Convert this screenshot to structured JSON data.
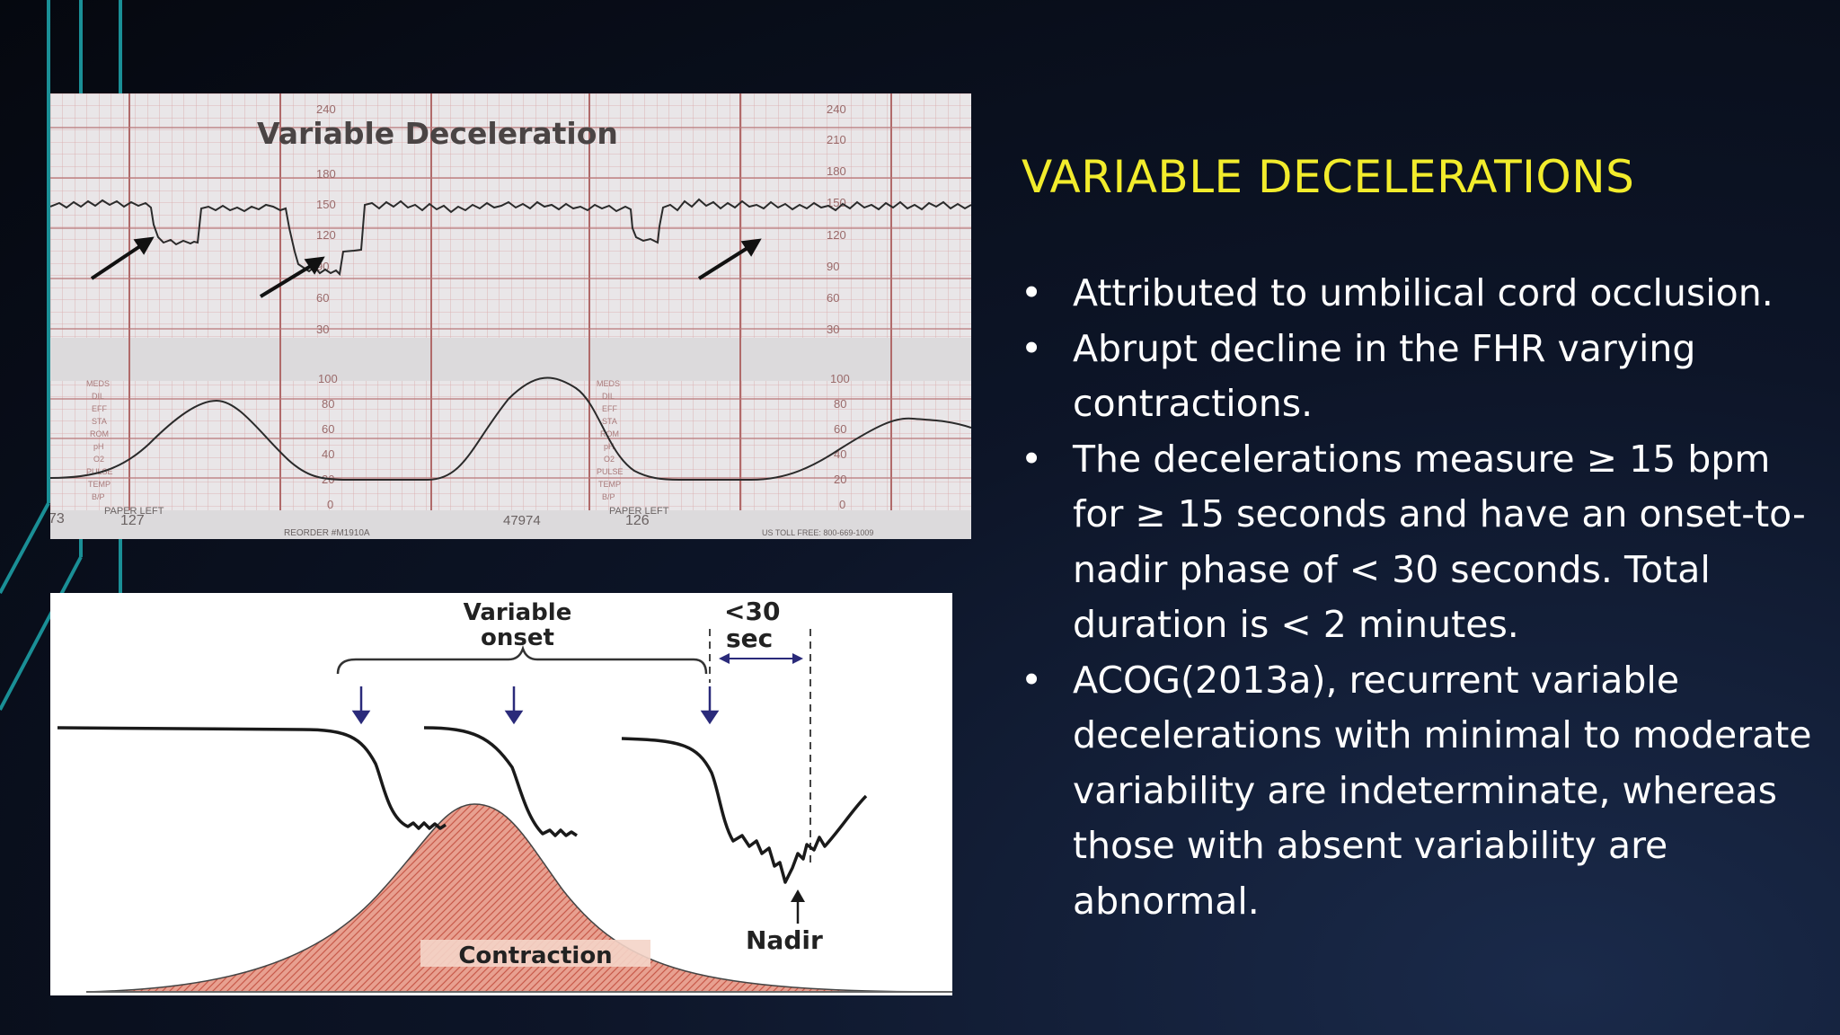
{
  "slide": {
    "title": "VARIABLE DECELERATIONS",
    "bullet_symbol": "•",
    "bullets": [
      "Attributed to umbilical cord occlusion.",
      "Abrupt decline in the FHR varying contractions.",
      "The decelerations measure ≥ 15 bpm for ≥ 15 seconds and have an onset-to-nadir phase of < 30 seconds. Total duration is < 2 minutes.",
      "ACOG(2013a), recurrent variable decelerations with minimal to moderate variability are indeterminate, whereas those with absent variability are abnormal."
    ]
  },
  "ctg_strip": {
    "title": "Variable Deceleration",
    "fhr_scale": [
      "240",
      "210",
      "180",
      "150",
      "120",
      "90",
      "60",
      "30"
    ],
    "uc_scale": [
      "100",
      "80",
      "60",
      "40",
      "20",
      "0"
    ],
    "side_labels": [
      "MEDS",
      "DIL",
      "EFF",
      "STA",
      "ROM",
      "pH",
      "O2",
      "PULSE",
      "TEMP",
      "B/P"
    ],
    "page_left_label": "PAPER LEFT",
    "page_left_values": [
      "127",
      "126"
    ],
    "page_number_edge": "73",
    "serial": "47974",
    "reorder": "REORDER #M1910A",
    "toll_free": "US TOLL FREE: 800-669-1009"
  },
  "schematic": {
    "label_variable_onset": "Variable onset",
    "label_lt30": "<30",
    "label_sec": "sec",
    "label_contraction": "Contraction",
    "label_nadir": "Nadir"
  },
  "colors": {
    "title": "#f2ec2c",
    "text": "#ffffff",
    "accent_teal": "#1a8f96",
    "paper": "#e9e6e8",
    "grid": "#c07878",
    "contraction_fill": "#e8a090"
  }
}
